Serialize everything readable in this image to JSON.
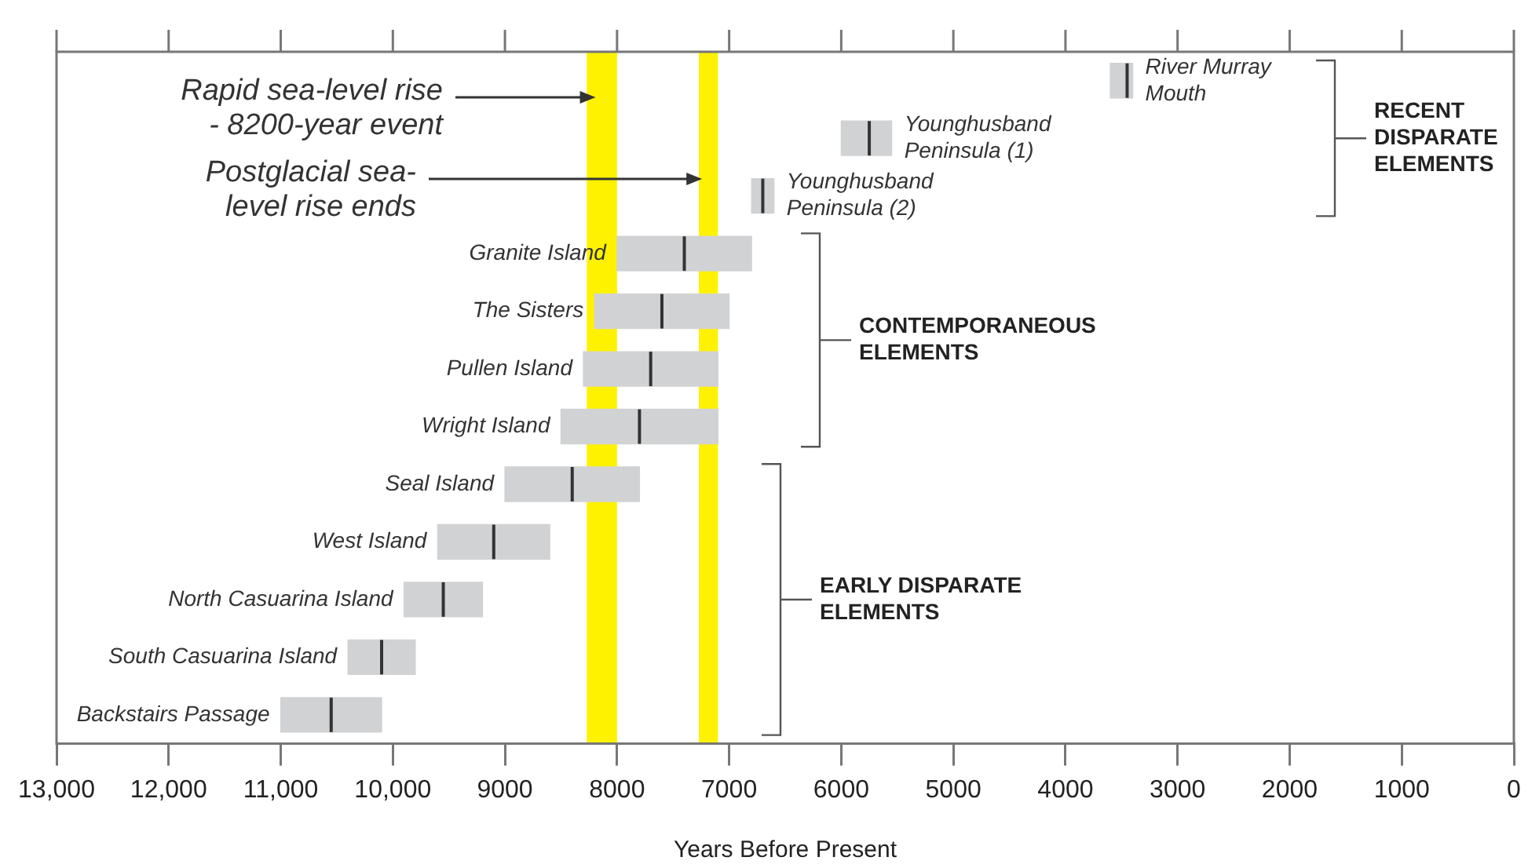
{
  "chart_data": {
    "type": "box",
    "orientation": "horizontal",
    "xlabel": "Years Before Present",
    "categories": [
      "River Murray Mouth",
      "Younghusband Peninsula (1)",
      "Younghusband Peninsula (2)",
      "Granite Island",
      "The Sisters",
      "Pullen Island",
      "Wright Island",
      "Seal Island",
      "West Island",
      "North Casuarina Island",
      "South Casuarina Island",
      "Backstairs Passage"
    ],
    "series": [
      {
        "color": "#d1d2d4",
        "boxes": [
          {
            "low": 3400,
            "q1": 3400,
            "median": 3450,
            "q3": 3600,
            "high": 3600
          },
          {
            "low": 5550,
            "q1": 5550,
            "median": 5750,
            "q3": 6000,
            "high": 6000
          },
          {
            "low": 6600,
            "q1": 6600,
            "median": 6700,
            "q3": 6800,
            "high": 6800
          },
          {
            "low": 6800,
            "q1": 6800,
            "median": 7400,
            "q3": 8000,
            "high": 8000
          },
          {
            "low": 7000,
            "q1": 7000,
            "median": 7600,
            "q3": 8200,
            "high": 8200
          },
          {
            "low": 7100,
            "q1": 7100,
            "median": 7700,
            "q3": 8300,
            "high": 8300
          },
          {
            "low": 7100,
            "q1": 7100,
            "median": 7800,
            "q3": 8500,
            "high": 8500
          },
          {
            "low": 7800,
            "q1": 7800,
            "median": 8400,
            "q3": 9000,
            "high": 9000
          },
          {
            "low": 8600,
            "q1": 8600,
            "median": 9100,
            "q3": 9600,
            "high": 9600
          },
          {
            "low": 9200,
            "q1": 9200,
            "median": 9550,
            "q3": 9900,
            "high": 9900
          },
          {
            "low": 9800,
            "q1": 9800,
            "median": 10100,
            "q3": 10400,
            "high": 10400
          },
          {
            "low": 10100,
            "q1": 10100,
            "median": 10550,
            "q3": 11000,
            "high": 11000
          }
        ]
      }
    ],
    "xlim": [
      13000,
      0
    ],
    "xticks": [
      {
        "value": 13000,
        "label": "13,000"
      },
      {
        "value": 12000,
        "label": "12,000"
      },
      {
        "value": 11000,
        "label": "11,000"
      },
      {
        "value": 10000,
        "label": "10,000"
      },
      9000,
      8000,
      7000,
      6000,
      5000,
      4000,
      3000,
      2000,
      1000,
      0
    ],
    "bands": [
      {
        "axis": "x",
        "from": 8000,
        "to": 8270,
        "color": "#fff200",
        "label": "Rapid sea-level rise - 8200-year event"
      },
      {
        "axis": "x",
        "from": 7100,
        "to": 7270,
        "color": "#fff200",
        "label": "Postglacial sea-level rise ends"
      }
    ],
    "annotations": [
      "RECENT DISPARATE ELEMENTS",
      "CONTEMPORANEOUS ELEMENTS",
      "EARLY DISPARATE ELEMENTS"
    ],
    "grid": false,
    "legend": false,
    "tick_labels": "x"
  }
}
